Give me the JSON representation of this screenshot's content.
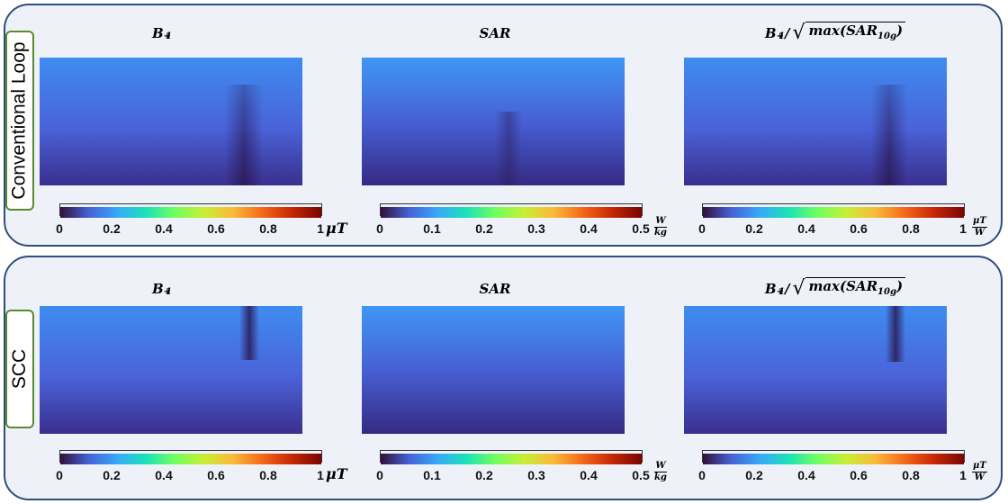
{
  "rows": [
    {
      "label": "Conventional Loop"
    },
    {
      "label": "SCC"
    }
  ],
  "columns": [
    {
      "title_base": "B",
      "title_sup": "+",
      "title_sub": "1",
      "colorbar_ticks": [
        "0",
        "0.2",
        "0.4",
        "0.6",
        "0.8",
        "1"
      ],
      "unit": "μT"
    },
    {
      "title": "SAR",
      "colorbar_ticks": [
        "0",
        "0.1",
        "0.2",
        "0.3",
        "0.4",
        "0.5"
      ],
      "unit_num": "W",
      "unit_den": "kg"
    },
    {
      "title_base": "B",
      "title_sup": "+",
      "title_sub": "1",
      "title_slash": "/",
      "title_sqrt_inner": "max(SAR",
      "title_sqrt_sub": "10g",
      "title_close": ")",
      "colorbar_ticks": [
        "0",
        "0.2",
        "0.4",
        "0.6",
        "0.8",
        "1"
      ],
      "unit_num": "μT",
      "unit_den": "W"
    }
  ],
  "colormap": [
    "#30123b",
    "#4662d7",
    "#36aaf9",
    "#1ae4b6",
    "#72fe5e",
    "#c7ef34",
    "#faba39",
    "#f66b19",
    "#ca2a04",
    "#7a0403"
  ]
}
